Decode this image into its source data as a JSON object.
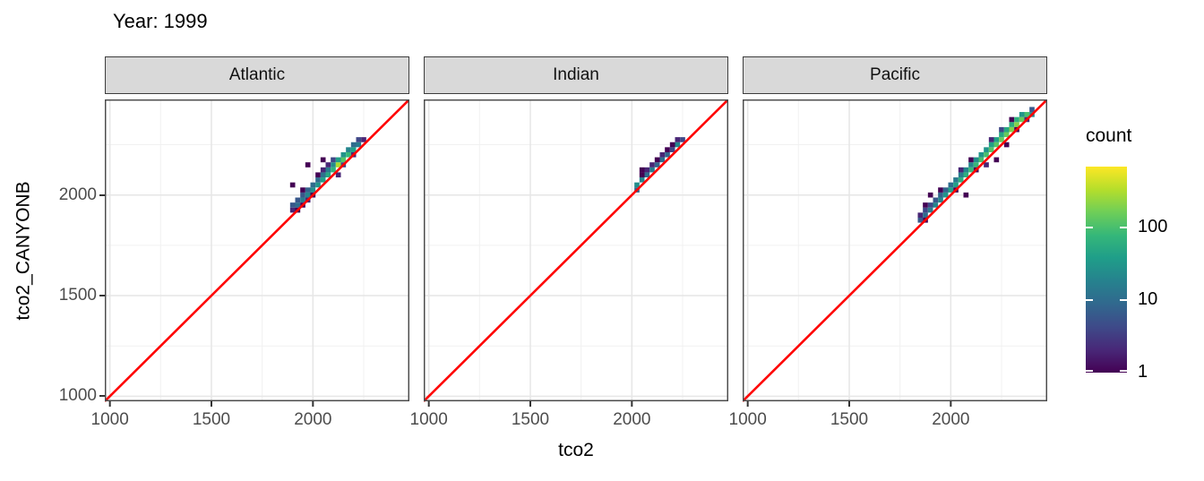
{
  "title": "Year: 1999",
  "axes": {
    "x_label": "tco2",
    "y_label": "tco2_CANYONB"
  },
  "legend": {
    "title": "count",
    "tick_labels": [
      "100",
      "10",
      "1"
    ],
    "tick_values": [
      100,
      10,
      1
    ],
    "scale": "log10",
    "max_count": 700,
    "viridis_stops": [
      "#440154",
      "#482878",
      "#3e4a89",
      "#31688e",
      "#26828e",
      "#1f9e89",
      "#35b779",
      "#6ece58",
      "#b5de2b",
      "#fde725"
    ]
  },
  "colors": {
    "identity_line": "#ff0000",
    "strip_fill": "#d9d9d9",
    "strip_border": "#3d3d3d",
    "panel_border": "#4a4a4a",
    "grid_major": "#e6e6e6",
    "grid_minor": "#f1f1f1",
    "axis_text": "#4d4d4d",
    "tick_mark": "#333333",
    "background": "#ffffff"
  },
  "chart_data": {
    "type": "heatmap",
    "title": "Year: 1999",
    "xlabel": "tco2",
    "ylabel": "tco2_CANYONB",
    "xlim": [
      975,
      2475
    ],
    "ylim": [
      975,
      2475
    ],
    "x_ticks": [
      1000,
      1500,
      2000
    ],
    "y_ticks": [
      1000,
      1500,
      2000
    ],
    "minor_gridlines": [
      1250,
      1750,
      2250
    ],
    "grid": "on",
    "legend_position": "right",
    "bin_width": 25,
    "identity_line": {
      "type": "y=x",
      "color": "#ff0000"
    },
    "facets": [
      {
        "label": "Atlantic",
        "bins": [
          [
            1900,
            1925,
            2
          ],
          [
            1900,
            1950,
            6
          ],
          [
            1925,
            1950,
            10
          ],
          [
            1925,
            1975,
            6
          ],
          [
            1925,
            1925,
            1
          ],
          [
            1950,
            1975,
            15
          ],
          [
            1950,
            2000,
            6
          ],
          [
            1950,
            1950,
            1
          ],
          [
            1950,
            2025,
            1
          ],
          [
            1975,
            2000,
            20
          ],
          [
            1975,
            2025,
            8
          ],
          [
            1975,
            1975,
            2
          ],
          [
            1975,
            2150,
            1
          ],
          [
            2000,
            2025,
            25
          ],
          [
            2000,
            2050,
            10
          ],
          [
            2000,
            2000,
            1
          ],
          [
            2025,
            2050,
            30
          ],
          [
            2025,
            2075,
            10
          ],
          [
            2025,
            2100,
            1
          ],
          [
            2050,
            2075,
            40
          ],
          [
            2050,
            2100,
            12
          ],
          [
            2050,
            2125,
            2
          ],
          [
            2050,
            2175,
            1
          ],
          [
            2075,
            2100,
            50
          ],
          [
            2075,
            2125,
            15
          ],
          [
            2075,
            2150,
            2
          ],
          [
            2100,
            2125,
            70
          ],
          [
            2100,
            2150,
            25
          ],
          [
            2100,
            2175,
            4
          ],
          [
            2125,
            2150,
            300
          ],
          [
            2125,
            2175,
            40
          ],
          [
            2125,
            2100,
            2
          ],
          [
            2150,
            2175,
            120
          ],
          [
            2150,
            2200,
            30
          ],
          [
            2150,
            2150,
            4
          ],
          [
            2175,
            2200,
            80
          ],
          [
            2175,
            2225,
            20
          ],
          [
            2200,
            2225,
            40
          ],
          [
            2200,
            2250,
            10
          ],
          [
            2200,
            2200,
            2
          ],
          [
            2225,
            2250,
            15
          ],
          [
            2225,
            2275,
            4
          ],
          [
            2250,
            2275,
            2
          ],
          [
            1900,
            2050,
            1
          ]
        ]
      },
      {
        "label": "Indian",
        "bins": [
          [
            2025,
            2050,
            25
          ],
          [
            2025,
            2025,
            8
          ],
          [
            2050,
            2075,
            20
          ],
          [
            2050,
            2100,
            1
          ],
          [
            2050,
            2125,
            1
          ],
          [
            2075,
            2100,
            10
          ],
          [
            2075,
            2125,
            2
          ],
          [
            2100,
            2125,
            15
          ],
          [
            2100,
            2150,
            2
          ],
          [
            2125,
            2150,
            8
          ],
          [
            2125,
            2175,
            1
          ],
          [
            2150,
            2175,
            10
          ],
          [
            2150,
            2200,
            2
          ],
          [
            2175,
            2200,
            8
          ],
          [
            2175,
            2225,
            1
          ],
          [
            2200,
            2225,
            4
          ],
          [
            2200,
            2250,
            1
          ],
          [
            2225,
            2250,
            20
          ],
          [
            2225,
            2275,
            2
          ],
          [
            2250,
            2275,
            4
          ]
        ]
      },
      {
        "label": "Pacific",
        "bins": [
          [
            1850,
            1875,
            6
          ],
          [
            1850,
            1900,
            2
          ],
          [
            1875,
            1900,
            10
          ],
          [
            1875,
            1925,
            4
          ],
          [
            1875,
            1950,
            1
          ],
          [
            1875,
            1875,
            1
          ],
          [
            1900,
            1925,
            15
          ],
          [
            1900,
            1950,
            4
          ],
          [
            1900,
            2000,
            1
          ],
          [
            1925,
            1950,
            20
          ],
          [
            1925,
            1975,
            6
          ],
          [
            1950,
            1975,
            20
          ],
          [
            1950,
            2000,
            8
          ],
          [
            1950,
            2025,
            1
          ],
          [
            1975,
            2000,
            30
          ],
          [
            1975,
            2025,
            8
          ],
          [
            2000,
            2025,
            40
          ],
          [
            2000,
            2050,
            10
          ],
          [
            2025,
            2050,
            40
          ],
          [
            2025,
            2075,
            15
          ],
          [
            2025,
            2025,
            1
          ],
          [
            2050,
            2075,
            60
          ],
          [
            2050,
            2100,
            15
          ],
          [
            2050,
            2125,
            2
          ],
          [
            2075,
            2100,
            60
          ],
          [
            2075,
            2125,
            20
          ],
          [
            2075,
            2000,
            1
          ],
          [
            2100,
            2125,
            80
          ],
          [
            2100,
            2150,
            20
          ],
          [
            2100,
            2175,
            1
          ],
          [
            2125,
            2150,
            80
          ],
          [
            2125,
            2175,
            25
          ],
          [
            2125,
            2125,
            1
          ],
          [
            2150,
            2175,
            100
          ],
          [
            2150,
            2200,
            30
          ],
          [
            2175,
            2200,
            100
          ],
          [
            2175,
            2225,
            30
          ],
          [
            2175,
            2150,
            2
          ],
          [
            2200,
            2225,
            120
          ],
          [
            2200,
            2250,
            40
          ],
          [
            2200,
            2275,
            2
          ],
          [
            2225,
            2250,
            120
          ],
          [
            2225,
            2275,
            40
          ],
          [
            2225,
            2175,
            1
          ],
          [
            2250,
            2275,
            150
          ],
          [
            2250,
            2300,
            50
          ],
          [
            2250,
            2325,
            4
          ],
          [
            2275,
            2300,
            150
          ],
          [
            2275,
            2325,
            50
          ],
          [
            2275,
            2250,
            1
          ],
          [
            2300,
            2325,
            200
          ],
          [
            2300,
            2350,
            60
          ],
          [
            2300,
            2375,
            1
          ],
          [
            2325,
            2350,
            200
          ],
          [
            2325,
            2375,
            60
          ],
          [
            2325,
            2325,
            1
          ],
          [
            2350,
            2375,
            150
          ],
          [
            2350,
            2400,
            30
          ],
          [
            2375,
            2400,
            100
          ],
          [
            2375,
            2375,
            2
          ],
          [
            2400,
            2400,
            20
          ],
          [
            2400,
            2425,
            6
          ]
        ]
      }
    ]
  }
}
